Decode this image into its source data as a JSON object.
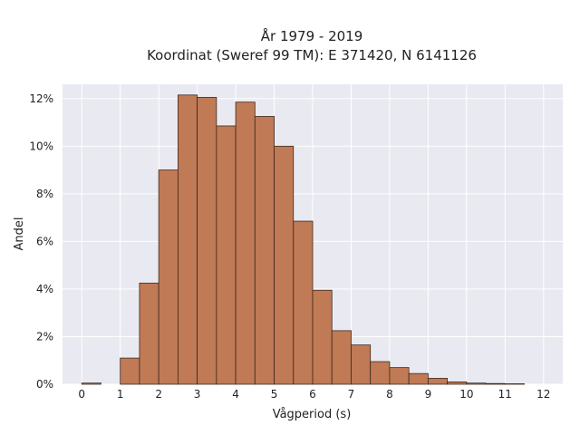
{
  "chart_data": {
    "type": "bar",
    "title": "År 1979 - 2019",
    "subtitle": "Koordinat (Sweref 99 TM): E 371420, N 6141126",
    "xlabel": "Vågperiod (s)",
    "ylabel": "Andel",
    "xlim": [
      -0.5,
      12.5
    ],
    "ylim": [
      0,
      12.6
    ],
    "x_ticks": [
      0,
      1,
      2,
      3,
      4,
      5,
      6,
      7,
      8,
      9,
      10,
      11,
      12
    ],
    "y_ticks": [
      0,
      2,
      4,
      6,
      8,
      10,
      12
    ],
    "y_tick_labels": [
      "0%",
      "2%",
      "4%",
      "6%",
      "8%",
      "10%",
      "12%"
    ],
    "bin_width": 0.5,
    "bins": [
      {
        "x0": 0.0,
        "x1": 0.5,
        "value": 0.05
      },
      {
        "x0": 1.0,
        "x1": 1.5,
        "value": 1.1
      },
      {
        "x0": 1.5,
        "x1": 2.0,
        "value": 4.25
      },
      {
        "x0": 2.0,
        "x1": 2.5,
        "value": 9.0
      },
      {
        "x0": 2.5,
        "x1": 3.0,
        "value": 12.15
      },
      {
        "x0": 3.0,
        "x1": 3.5,
        "value": 12.05
      },
      {
        "x0": 3.5,
        "x1": 4.0,
        "value": 10.85
      },
      {
        "x0": 4.0,
        "x1": 4.5,
        "value": 11.85
      },
      {
        "x0": 4.5,
        "x1": 5.0,
        "value": 11.25
      },
      {
        "x0": 5.0,
        "x1": 5.5,
        "value": 10.0
      },
      {
        "x0": 5.5,
        "x1": 6.0,
        "value": 6.85
      },
      {
        "x0": 6.0,
        "x1": 6.5,
        "value": 3.95
      },
      {
        "x0": 6.5,
        "x1": 7.0,
        "value": 2.25
      },
      {
        "x0": 7.0,
        "x1": 7.5,
        "value": 1.65
      },
      {
        "x0": 7.5,
        "x1": 8.0,
        "value": 0.95
      },
      {
        "x0": 8.0,
        "x1": 8.5,
        "value": 0.7
      },
      {
        "x0": 8.5,
        "x1": 9.0,
        "value": 0.45
      },
      {
        "x0": 9.0,
        "x1": 9.5,
        "value": 0.25
      },
      {
        "x0": 9.5,
        "x1": 10.0,
        "value": 0.1
      },
      {
        "x0": 10.0,
        "x1": 10.5,
        "value": 0.05
      },
      {
        "x0": 10.5,
        "x1": 11.0,
        "value": 0.03
      },
      {
        "x0": 11.0,
        "x1": 11.5,
        "value": 0.02
      }
    ],
    "bar_color": "#c07a55",
    "bar_edge_color": "#3d2a1e",
    "plot_background": "#e9e9f1",
    "grid": true,
    "legend": false
  }
}
